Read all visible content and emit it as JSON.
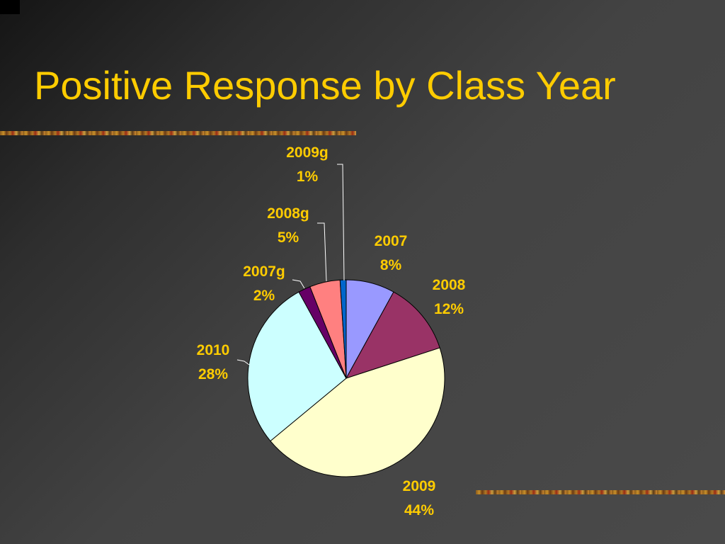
{
  "slide": {
    "title": "Positive Response by Class Year"
  },
  "colors": {
    "title": "#ffcc00",
    "labels": "#ffcc00",
    "slice_outline": "#000000",
    "leader_line": "#ffffff"
  },
  "chart_data": {
    "type": "pie",
    "start_angle_deg": 0,
    "direction": "clockwise",
    "slices": [
      {
        "category": "2007",
        "value": 8,
        "percent_label": "8%",
        "color": "#9999ff"
      },
      {
        "category": "2008",
        "value": 12,
        "percent_label": "12%",
        "color": "#993366"
      },
      {
        "category": "2009",
        "value": 44,
        "percent_label": "44%",
        "color": "#ffffcc"
      },
      {
        "category": "2010",
        "value": 28,
        "percent_label": "28%",
        "color": "#ccffff"
      },
      {
        "category": "2007g",
        "value": 2,
        "percent_label": "2%",
        "color": "#660066"
      },
      {
        "category": "2008g",
        "value": 5,
        "percent_label": "5%",
        "color": "#ff8080"
      },
      {
        "category": "2009g",
        "value": 1,
        "percent_label": "1%",
        "color": "#0066cc"
      }
    ]
  }
}
